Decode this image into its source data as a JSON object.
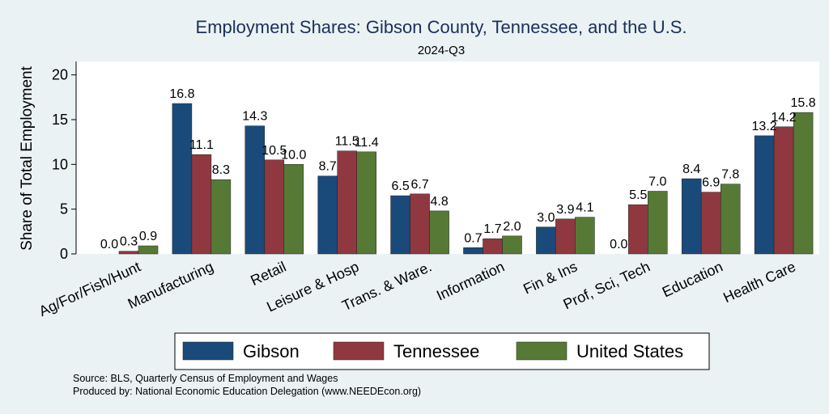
{
  "chart_data": {
    "type": "bar",
    "title": "Employment Shares: Gibson County, Tennessee, and the U.S.",
    "subtitle": "2024-Q3",
    "xlabel": "",
    "ylabel": "Share of Total Employment",
    "ylim": [
      0,
      21.5
    ],
    "yticks": [
      0,
      5,
      10,
      15,
      20
    ],
    "categories": [
      "Ag/For/Fish/Hunt",
      "Manufacturing",
      "Retail",
      "Leisure & Hosp",
      "Trans. & Ware.",
      "Information",
      "Fin & Ins",
      "Prof, Sci, Tech",
      "Education",
      "Health Care"
    ],
    "series": [
      {
        "name": "Gibson",
        "color": "#1a4a7a",
        "values": [
          0.0,
          16.8,
          14.3,
          8.7,
          6.5,
          0.7,
          3.0,
          0.0,
          8.4,
          13.2
        ],
        "labels": [
          "0.0",
          "16.8",
          "14.3",
          "8.7",
          "6.5",
          "0.7",
          "3.0",
          "0.0",
          "8.4",
          "13.2"
        ]
      },
      {
        "name": "Tennessee",
        "color": "#903840",
        "values": [
          0.3,
          11.1,
          10.5,
          11.5,
          6.7,
          1.7,
          3.9,
          5.5,
          6.9,
          14.2
        ],
        "labels": [
          "0.3",
          "11.1",
          "10.5",
          "11.5",
          "6.7",
          "1.7",
          "3.9",
          "5.5",
          "6.9",
          "14.2"
        ]
      },
      {
        "name": "United States",
        "color": "#567a36",
        "values": [
          0.9,
          8.3,
          10.0,
          11.4,
          4.8,
          2.0,
          4.1,
          7.0,
          7.8,
          15.8
        ],
        "labels": [
          "0.9",
          "8.3",
          "10.0",
          "11.4",
          "4.8",
          "2.0",
          "4.1",
          "7.0",
          "7.8",
          "15.8"
        ]
      }
    ],
    "legend_position": "bottom",
    "grid": false
  },
  "notes": {
    "source": "Source: BLS, Quarterly Census of Employment and Wages",
    "produced_by": "Produced by: National Economic Education Delegation (www.NEEDEcon.org)"
  }
}
